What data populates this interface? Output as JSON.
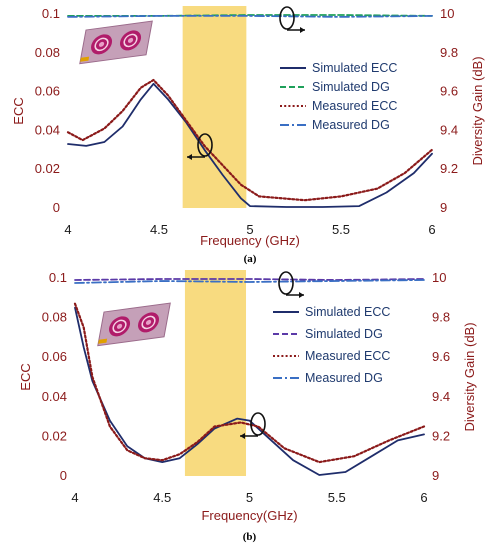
{
  "chart_data": [
    {
      "type": "line",
      "panel_label": "(a)",
      "xlabel": "Frequency (GHz)",
      "ylabel": "ECC",
      "y2label": "Diversity Gain (dB)",
      "xlim": [
        4,
        6
      ],
      "ylim": [
        0,
        0.1
      ],
      "y2lim": [
        9,
        10
      ],
      "x_ticks": [
        "4",
        "4.5",
        "5",
        "5.5",
        "6"
      ],
      "y_ticks": [
        "0",
        "0.02",
        "0.04",
        "0.06",
        "0.08",
        "0.1"
      ],
      "y2_ticks": [
        "9",
        "9.2",
        "9.4",
        "9.6",
        "9.8",
        "10"
      ],
      "highlight_band": [
        4.63,
        4.98
      ],
      "legend": [
        "Simulated ECC",
        "Simulated DG",
        "Measured ECC",
        "Measured DG"
      ],
      "series": [
        {
          "name": "Simulated ECC",
          "axis": "left",
          "color": "#1f2d6b",
          "dash": "solid",
          "x": [
            4,
            4.1,
            4.2,
            4.3,
            4.4,
            4.47,
            4.55,
            4.65,
            4.75,
            4.85,
            4.95,
            5.0,
            5.2,
            5.4,
            5.6,
            5.75,
            5.9,
            6
          ],
          "y": [
            0.033,
            0.032,
            0.034,
            0.042,
            0.056,
            0.064,
            0.056,
            0.044,
            0.03,
            0.017,
            0.005,
            0.001,
            0.0005,
            0.0005,
            0.001,
            0.008,
            0.018,
            0.028
          ]
        },
        {
          "name": "Simulated DG",
          "axis": "right",
          "color": "#1fa05a",
          "dash": "dash",
          "x": [
            4,
            4.5,
            5,
            5.5,
            6
          ],
          "y": [
            9.99,
            9.99,
            9.995,
            9.995,
            9.99
          ]
        },
        {
          "name": "Measured ECC",
          "axis": "left",
          "color": "#8b1a1a",
          "dash": "dot",
          "x": [
            4,
            4.08,
            4.2,
            4.3,
            4.4,
            4.47,
            4.55,
            4.65,
            4.75,
            4.85,
            4.95,
            5.05,
            5.3,
            5.5,
            5.7,
            5.85,
            6
          ],
          "y": [
            0.039,
            0.035,
            0.041,
            0.05,
            0.062,
            0.066,
            0.058,
            0.045,
            0.032,
            0.022,
            0.012,
            0.006,
            0.004,
            0.006,
            0.01,
            0.018,
            0.03
          ]
        },
        {
          "name": "Measured DG",
          "axis": "right",
          "color": "#3a6fc4",
          "dash": "dashdot",
          "x": [
            4,
            4.5,
            5,
            5.5,
            6
          ],
          "y": [
            9.985,
            9.99,
            9.99,
            9.985,
            9.99
          ]
        }
      ]
    },
    {
      "type": "line",
      "panel_label": "(b)",
      "xlabel": "Frequency(GHz)",
      "ylabel": "ECC",
      "y2label": "Diversity Gain (dB)",
      "xlim": [
        4,
        6
      ],
      "ylim": [
        0,
        0.1
      ],
      "y2lim": [
        9,
        10
      ],
      "x_ticks": [
        "4",
        "4.5",
        "5",
        "5.5",
        "6"
      ],
      "y_ticks": [
        "0",
        "0.02",
        "0.04",
        "0.06",
        "0.08",
        "0.1"
      ],
      "y2_ticks": [
        "9",
        "9.2",
        "9.4",
        "9.6",
        "9.8",
        "10"
      ],
      "highlight_band": [
        4.63,
        4.98
      ],
      "legend": [
        "Simulated ECC",
        "Simulated DG",
        "Measured ECC",
        "Measured DG"
      ],
      "series": [
        {
          "name": "Simulated ECC",
          "axis": "left",
          "color": "#1f2d6b",
          "dash": "solid",
          "x": [
            4,
            4.05,
            4.1,
            4.2,
            4.3,
            4.4,
            4.5,
            4.6,
            4.7,
            4.8,
            4.93,
            5.0,
            5.1,
            5.25,
            5.4,
            5.55,
            5.7,
            5.85,
            6
          ],
          "y": [
            0.085,
            0.065,
            0.048,
            0.028,
            0.015,
            0.009,
            0.007,
            0.009,
            0.016,
            0.024,
            0.029,
            0.028,
            0.02,
            0.008,
            0.0005,
            0.002,
            0.01,
            0.018,
            0.021
          ]
        },
        {
          "name": "Simulated DG",
          "axis": "right",
          "color": "#5b3aa8",
          "dash": "dash",
          "x": [
            4,
            4.5,
            5,
            5.5,
            6
          ],
          "y": [
            9.99,
            9.995,
            9.995,
            9.99,
            9.995
          ]
        },
        {
          "name": "Measured ECC",
          "axis": "left",
          "color": "#8b1a1a",
          "dash": "dot",
          "x": [
            4,
            4.05,
            4.1,
            4.2,
            4.3,
            4.4,
            4.5,
            4.6,
            4.7,
            4.8,
            4.95,
            5.05,
            5.2,
            5.4,
            5.6,
            5.8,
            6
          ],
          "y": [
            0.087,
            0.075,
            0.05,
            0.025,
            0.013,
            0.009,
            0.008,
            0.011,
            0.017,
            0.025,
            0.027,
            0.025,
            0.014,
            0.007,
            0.01,
            0.018,
            0.025
          ]
        },
        {
          "name": "Measured DG",
          "axis": "right",
          "color": "#3a6fc4",
          "dash": "dashdot",
          "x": [
            4,
            4.5,
            5,
            5.5,
            6
          ],
          "y": [
            9.975,
            9.985,
            9.98,
            9.985,
            9.99
          ]
        }
      ]
    }
  ]
}
